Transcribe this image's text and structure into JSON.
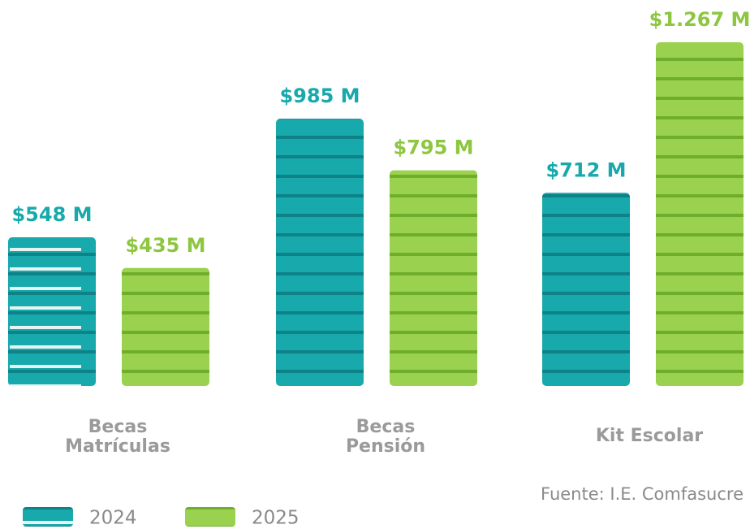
{
  "chart_data": {
    "type": "bar",
    "categories": [
      "Becas Matrículas",
      "Becas Pensión",
      "Kit Escolar"
    ],
    "series": [
      {
        "name": "2024",
        "color": "#17a9ab",
        "values": [
          548,
          985,
          712
        ],
        "value_labels": [
          "$548 M",
          "$985 M",
          "$712 M"
        ]
      },
      {
        "name": "2025",
        "color": "#8dc63f",
        "values": [
          435,
          795,
          1267
        ],
        "value_labels": [
          "$435 M",
          "$795 M",
          "$1.267 M"
        ]
      }
    ],
    "source": "Fuente: I.E. Comfasucre"
  }
}
